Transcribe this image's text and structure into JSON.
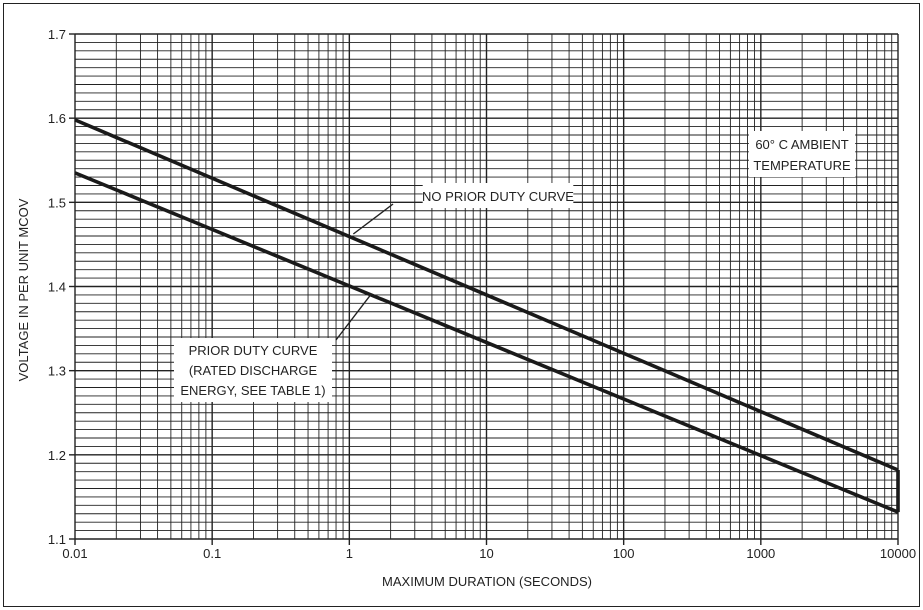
{
  "chart_data": {
    "type": "line",
    "title": "",
    "xlabel": "MAXIMUM DURATION (SECONDS)",
    "ylabel": "VOLTAGE IN PER UNIT MCOV",
    "xscale": "log",
    "xlim": [
      0.01,
      10000
    ],
    "ylim": [
      1.1,
      1.7
    ],
    "grid": true,
    "x_ticks": [
      0.01,
      0.1,
      1,
      10,
      100,
      1000,
      10000
    ],
    "x_tick_labels": [
      "0.01",
      "0.1",
      "1",
      "10",
      "100",
      "1000",
      "10000"
    ],
    "y_ticks": [
      1.1,
      1.2,
      1.3,
      1.4,
      1.5,
      1.6,
      1.7
    ],
    "y_tick_labels": [
      "1.1",
      "1.2",
      "1.3",
      "1.4",
      "1.5",
      "1.6",
      "1.7"
    ],
    "series": [
      {
        "name": "NO PRIOR DUTY CURVE",
        "x": [
          0.01,
          10000
        ],
        "y": [
          1.598,
          1.182
        ]
      },
      {
        "name": "PRIOR DUTY CURVE",
        "x": [
          0.01,
          10000
        ],
        "y": [
          1.535,
          1.132
        ]
      }
    ],
    "annotations": [
      {
        "id": "ambient",
        "lines": [
          "60° C AMBIENT",
          "TEMPERATURE"
        ]
      },
      {
        "id": "no_prior",
        "lines": [
          "NO PRIOR DUTY CURVE"
        ],
        "points_to": {
          "x": 1.0,
          "y": 1.46
        }
      },
      {
        "id": "prior",
        "lines": [
          "PRIOR DUTY CURVE",
          "(RATED DISCHARGE",
          "ENERGY, SEE TABLE 1)"
        ],
        "points_to": {
          "x": 1.5,
          "y": 1.395
        }
      }
    ]
  }
}
